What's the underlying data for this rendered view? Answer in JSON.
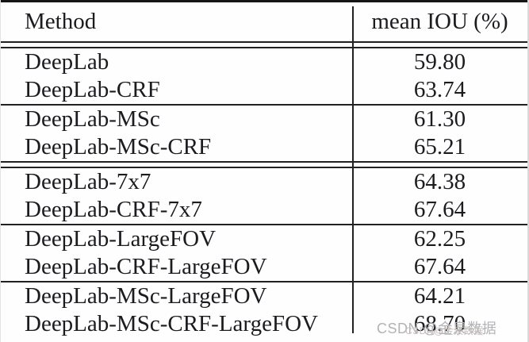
{
  "table": {
    "header": {
      "method": "Method",
      "iou": "mean IOU (%)"
    },
    "rows": [
      {
        "method": "DeepLab",
        "iou": "59.80"
      },
      {
        "method": "DeepLab-CRF",
        "iou": "63.74"
      },
      {
        "method": "DeepLab-MSc",
        "iou": "61.30"
      },
      {
        "method": "DeepLab-MSc-CRF",
        "iou": "65.21"
      },
      {
        "method": "DeepLab-7x7",
        "iou": "64.38"
      },
      {
        "method": "DeepLab-CRF-7x7",
        "iou": "67.64"
      },
      {
        "method": "DeepLab-LargeFOV",
        "iou": "62.25"
      },
      {
        "method": "DeepLab-CRF-LargeFOV",
        "iou": "67.64"
      },
      {
        "method": "DeepLab-MSc-LargeFOV",
        "iou": "64.21"
      },
      {
        "method": "DeepLab-MSc-CRF-LargeFOV",
        "iou": "68.70"
      }
    ]
  },
  "watermark": {
    "text": "CSDN @金泉数据",
    "overlay_text": "CSDN@金泉数据",
    "color": "#b3b3b7"
  },
  "colors": {
    "background": "#fefefe",
    "text": "#1b1b20",
    "rule": "#212124",
    "watermark": "#b3b3b7"
  }
}
